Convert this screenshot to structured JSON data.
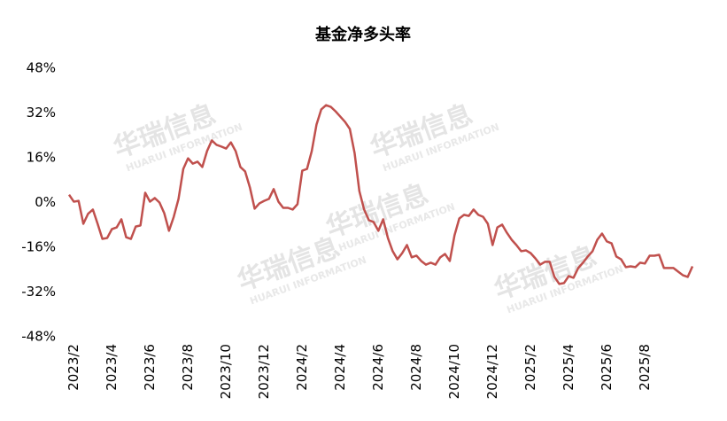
{
  "chart_data": {
    "type": "line",
    "title": "基金净多头率",
    "watermark": "华瑞信息",
    "watermark_sub": "HUARUI INFORMATION",
    "categories": [
      null,
      "2023/2",
      null,
      null,
      null,
      null,
      null,
      null,
      null,
      "2023/4",
      null,
      null,
      null,
      null,
      null,
      null,
      null,
      "2023/6",
      null,
      null,
      null,
      null,
      null,
      null,
      null,
      "2023/8",
      null,
      null,
      null,
      null,
      null,
      null,
      null,
      "2023/10",
      null,
      null,
      null,
      null,
      null,
      null,
      null,
      "2023/12",
      null,
      null,
      null,
      null,
      null,
      null,
      null,
      "2024/2",
      null,
      null,
      null,
      null,
      null,
      null,
      null,
      "2024/4",
      null,
      null,
      null,
      null,
      null,
      null,
      null,
      "2024/6",
      null,
      null,
      null,
      null,
      null,
      null,
      null,
      "2024/8",
      null,
      null,
      null,
      null,
      null,
      null,
      null,
      "2024/10",
      null,
      null,
      null,
      null,
      null,
      null,
      null,
      "2024/12",
      null,
      null,
      null,
      null,
      null,
      null,
      null,
      "2025/2",
      null,
      null,
      null,
      null,
      null,
      null,
      null,
      "2025/4",
      null,
      null,
      null,
      null,
      null,
      null,
      null,
      "2025/6",
      null,
      null,
      null,
      null,
      null,
      null,
      null,
      "2025/8",
      null,
      null,
      null,
      null,
      null,
      null,
      null,
      null,
      null,
      null
    ],
    "series": [
      {
        "name": "基金净多头率",
        "color": "#c0504d",
        "values": [
          2.8,
          0.3,
          0.6,
          -7.6,
          -4,
          -2.5,
          -7.6,
          -13,
          -12.7,
          -9.5,
          -8.9,
          -6,
          -12.4,
          -13,
          -8.6,
          -8.2,
          3.5,
          0.3,
          1.6,
          0,
          -3.8,
          -10.1,
          -5.1,
          1.3,
          12,
          15.8,
          13.9,
          14.6,
          12.7,
          18.4,
          22.2,
          20.6,
          20,
          19.3,
          21.5,
          18.4,
          12.7,
          11.1,
          5.4,
          -2.2,
          -0.3,
          0.6,
          1.3,
          4.8,
          0.3,
          -1.9,
          -1.9,
          -2.5,
          -0.6,
          11.4,
          12,
          18.4,
          27.9,
          33.3,
          34.8,
          34.2,
          32.6,
          30.7,
          28.8,
          26.3,
          17.7,
          4.1,
          -2.5,
          -6.3,
          -7,
          -10.1,
          -6,
          -12.7,
          -17.4,
          -20.3,
          -18.1,
          -15.2,
          -19.6,
          -19,
          -20.9,
          -22.2,
          -21.5,
          -22.2,
          -19.6,
          -18.4,
          -20.9,
          -11.7,
          -5.7,
          -4.4,
          -4.8,
          -2.5,
          -4.4,
          -5.1,
          -7.6,
          -15.2,
          -8.9,
          -7.9,
          -10.8,
          -13.3,
          -15.2,
          -17.4,
          -17.1,
          -18.1,
          -20,
          -22.2,
          -21.2,
          -21.2,
          -26.6,
          -29.1,
          -28.8,
          -26.3,
          -26.9,
          -23.4,
          -21.5,
          -19.3,
          -17.4,
          -13.3,
          -11.1,
          -13.9,
          -14.6,
          -19.3,
          -20.3,
          -23.1,
          -22.8,
          -23.1,
          -21.5,
          -21.8,
          -19,
          -19,
          -18.7,
          -23.4,
          -23.4,
          -23.4,
          -24.7,
          -26,
          -26.6,
          -22.8
        ]
      }
    ],
    "ylim": [
      -48,
      48
    ],
    "yticks": [
      {
        "value": -48,
        "label": "-48%"
      },
      {
        "value": -32,
        "label": "-32%"
      },
      {
        "value": -16,
        "label": "-16%"
      },
      {
        "value": 0,
        "label": "0%"
      },
      {
        "value": 16,
        "label": "16%"
      },
      {
        "value": 32,
        "label": "32%"
      },
      {
        "value": 48,
        "label": "48%"
      }
    ],
    "grid": false
  }
}
